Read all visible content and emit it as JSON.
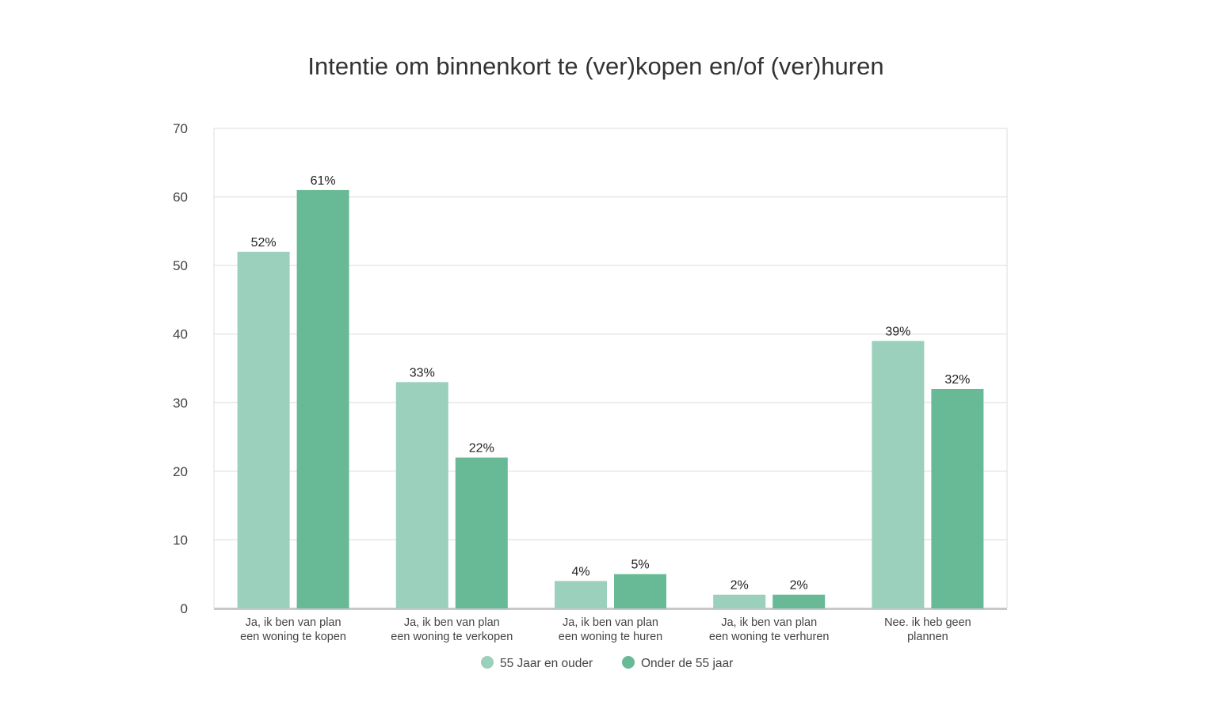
{
  "chart_data": {
    "type": "bar",
    "title": "Intentie om binnenkort te (ver)kopen en/of (ver)huren",
    "xlabel": "",
    "ylabel": "",
    "ylim": [
      0,
      70
    ],
    "yticks": [
      0,
      10,
      20,
      30,
      40,
      50,
      60,
      70
    ],
    "grid": true,
    "legend_position": "bottom-center",
    "categories": [
      [
        "Ja, ik ben van plan",
        "een woning te kopen"
      ],
      [
        "Ja, ik ben van plan",
        "een woning te verkopen"
      ],
      [
        "Ja, ik ben van plan",
        "een woning te huren"
      ],
      [
        "Ja, ik ben van plan",
        "een woning te verhuren"
      ],
      [
        "Nee. ik heb geen",
        "plannen"
      ]
    ],
    "series": [
      {
        "name": "55 Jaar en ouder",
        "color": "#9ad0bc",
        "values": [
          52,
          33,
          4,
          2,
          39
        ],
        "labels": [
          "52%",
          "33%",
          "4%",
          "2%",
          "39%"
        ]
      },
      {
        "name": "Onder de 55 jaar",
        "color": "#67ba95",
        "values": [
          61,
          22,
          5,
          2,
          32
        ],
        "labels": [
          "61%",
          "22%",
          "5%",
          "2%",
          "32%"
        ]
      }
    ]
  }
}
